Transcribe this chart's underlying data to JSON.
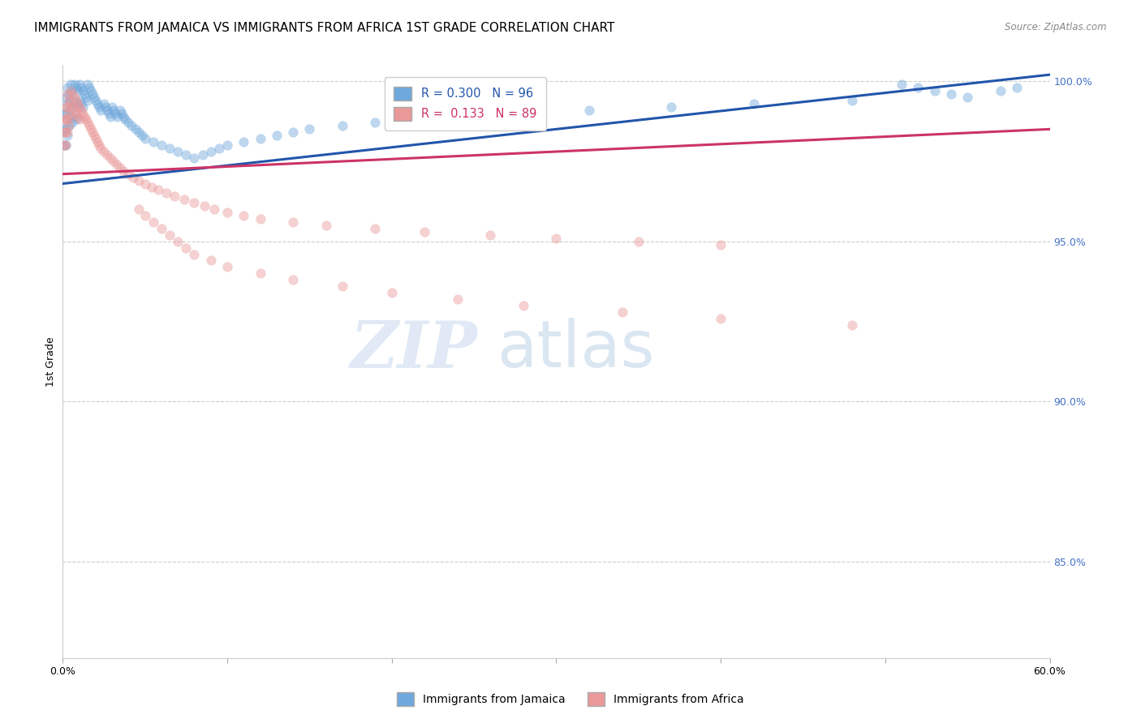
{
  "title": "IMMIGRANTS FROM JAMAICA VS IMMIGRANTS FROM AFRICA 1ST GRADE CORRELATION CHART",
  "source": "Source: ZipAtlas.com",
  "ylabel": "1st Grade",
  "right_yticks": [
    "100.0%",
    "95.0%",
    "90.0%",
    "85.0%"
  ],
  "right_ytick_vals": [
    1.0,
    0.95,
    0.9,
    0.85
  ],
  "legend_r_jamaica": "R = 0.300",
  "legend_n_jamaica": "N = 96",
  "legend_r_africa": "R =  0.133",
  "legend_n_africa": "N = 89",
  "watermark_zip": "ZIP",
  "watermark_atlas": "atlas",
  "jamaica_color": "#6fa8dc",
  "africa_color": "#ea9999",
  "jamaica_line_color": "#2255aa",
  "africa_line_color": "#cc3366",
  "jamaica_scatter_x": [
    0.001,
    0.001,
    0.001,
    0.002,
    0.002,
    0.002,
    0.002,
    0.003,
    0.003,
    0.003,
    0.003,
    0.004,
    0.004,
    0.004,
    0.005,
    0.005,
    0.005,
    0.006,
    0.006,
    0.006,
    0.007,
    0.007,
    0.007,
    0.008,
    0.008,
    0.008,
    0.009,
    0.009,
    0.01,
    0.01,
    0.011,
    0.011,
    0.012,
    0.012,
    0.013,
    0.014,
    0.015,
    0.015,
    0.016,
    0.017,
    0.018,
    0.019,
    0.02,
    0.021,
    0.022,
    0.023,
    0.025,
    0.026,
    0.027,
    0.028,
    0.029,
    0.03,
    0.031,
    0.032,
    0.033,
    0.035,
    0.036,
    0.037,
    0.038,
    0.04,
    0.042,
    0.044,
    0.046,
    0.048,
    0.05,
    0.055,
    0.06,
    0.065,
    0.07,
    0.075,
    0.08,
    0.085,
    0.09,
    0.095,
    0.1,
    0.11,
    0.12,
    0.13,
    0.14,
    0.15,
    0.17,
    0.19,
    0.22,
    0.25,
    0.28,
    0.32,
    0.37,
    0.42,
    0.48,
    0.51,
    0.52,
    0.53,
    0.54,
    0.55,
    0.57,
    0.58
  ],
  "jamaica_scatter_y": [
    0.99,
    0.985,
    0.98,
    0.995,
    0.99,
    0.985,
    0.98,
    0.998,
    0.993,
    0.988,
    0.983,
    0.996,
    0.991,
    0.986,
    0.999,
    0.994,
    0.989,
    0.997,
    0.992,
    0.987,
    0.999,
    0.994,
    0.989,
    0.998,
    0.993,
    0.988,
    0.997,
    0.992,
    0.999,
    0.994,
    0.998,
    0.993,
    0.997,
    0.992,
    0.996,
    0.995,
    0.999,
    0.994,
    0.998,
    0.997,
    0.996,
    0.995,
    0.994,
    0.993,
    0.992,
    0.991,
    0.993,
    0.992,
    0.991,
    0.99,
    0.989,
    0.992,
    0.991,
    0.99,
    0.989,
    0.991,
    0.99,
    0.989,
    0.988,
    0.987,
    0.986,
    0.985,
    0.984,
    0.983,
    0.982,
    0.981,
    0.98,
    0.979,
    0.978,
    0.977,
    0.976,
    0.977,
    0.978,
    0.979,
    0.98,
    0.981,
    0.982,
    0.983,
    0.984,
    0.985,
    0.986,
    0.987,
    0.988,
    0.989,
    0.99,
    0.991,
    0.992,
    0.993,
    0.994,
    0.999,
    0.998,
    0.997,
    0.996,
    0.995,
    0.997,
    0.998
  ],
  "africa_scatter_x": [
    0.001,
    0.001,
    0.001,
    0.002,
    0.002,
    0.002,
    0.002,
    0.003,
    0.003,
    0.003,
    0.003,
    0.004,
    0.004,
    0.004,
    0.005,
    0.005,
    0.005,
    0.006,
    0.006,
    0.007,
    0.007,
    0.008,
    0.008,
    0.009,
    0.009,
    0.01,
    0.01,
    0.011,
    0.012,
    0.013,
    0.014,
    0.015,
    0.016,
    0.017,
    0.018,
    0.019,
    0.02,
    0.021,
    0.022,
    0.023,
    0.025,
    0.027,
    0.029,
    0.031,
    0.033,
    0.035,
    0.037,
    0.04,
    0.043,
    0.046,
    0.05,
    0.054,
    0.058,
    0.063,
    0.068,
    0.074,
    0.08,
    0.086,
    0.092,
    0.1,
    0.11,
    0.12,
    0.14,
    0.16,
    0.19,
    0.22,
    0.26,
    0.3,
    0.35,
    0.4,
    0.046,
    0.05,
    0.055,
    0.06,
    0.065,
    0.07,
    0.075,
    0.08,
    0.09,
    0.1,
    0.12,
    0.14,
    0.17,
    0.2,
    0.24,
    0.28,
    0.34,
    0.4,
    0.48
  ],
  "africa_scatter_y": [
    0.988,
    0.984,
    0.98,
    0.992,
    0.988,
    0.984,
    0.98,
    0.996,
    0.992,
    0.988,
    0.984,
    0.994,
    0.99,
    0.986,
    0.997,
    0.993,
    0.989,
    0.996,
    0.992,
    0.995,
    0.991,
    0.994,
    0.99,
    0.993,
    0.989,
    0.992,
    0.988,
    0.991,
    0.99,
    0.989,
    0.988,
    0.987,
    0.986,
    0.985,
    0.984,
    0.983,
    0.982,
    0.981,
    0.98,
    0.979,
    0.978,
    0.977,
    0.976,
    0.975,
    0.974,
    0.973,
    0.972,
    0.971,
    0.97,
    0.969,
    0.968,
    0.967,
    0.966,
    0.965,
    0.964,
    0.963,
    0.962,
    0.961,
    0.96,
    0.959,
    0.958,
    0.957,
    0.956,
    0.955,
    0.954,
    0.953,
    0.952,
    0.951,
    0.95,
    0.949,
    0.96,
    0.958,
    0.956,
    0.954,
    0.952,
    0.95,
    0.948,
    0.946,
    0.944,
    0.942,
    0.94,
    0.938,
    0.936,
    0.934,
    0.932,
    0.93,
    0.928,
    0.926,
    0.924
  ],
  "xlim": [
    0.0,
    0.6
  ],
  "ylim": [
    0.82,
    1.005
  ],
  "background_color": "#ffffff",
  "grid_color": "#cccccc",
  "title_fontsize": 11,
  "axis_label_fontsize": 9,
  "tick_fontsize": 9,
  "scatter_size": 70,
  "scatter_alpha": 0.45,
  "line_width": 2.2,
  "jamaica_line_x0": 0.0,
  "jamaica_line_y0": 0.968,
  "jamaica_line_x1": 0.6,
  "jamaica_line_y1": 1.002,
  "africa_line_x0": 0.0,
  "africa_line_y0": 0.971,
  "africa_line_x1": 0.6,
  "africa_line_y1": 0.985
}
